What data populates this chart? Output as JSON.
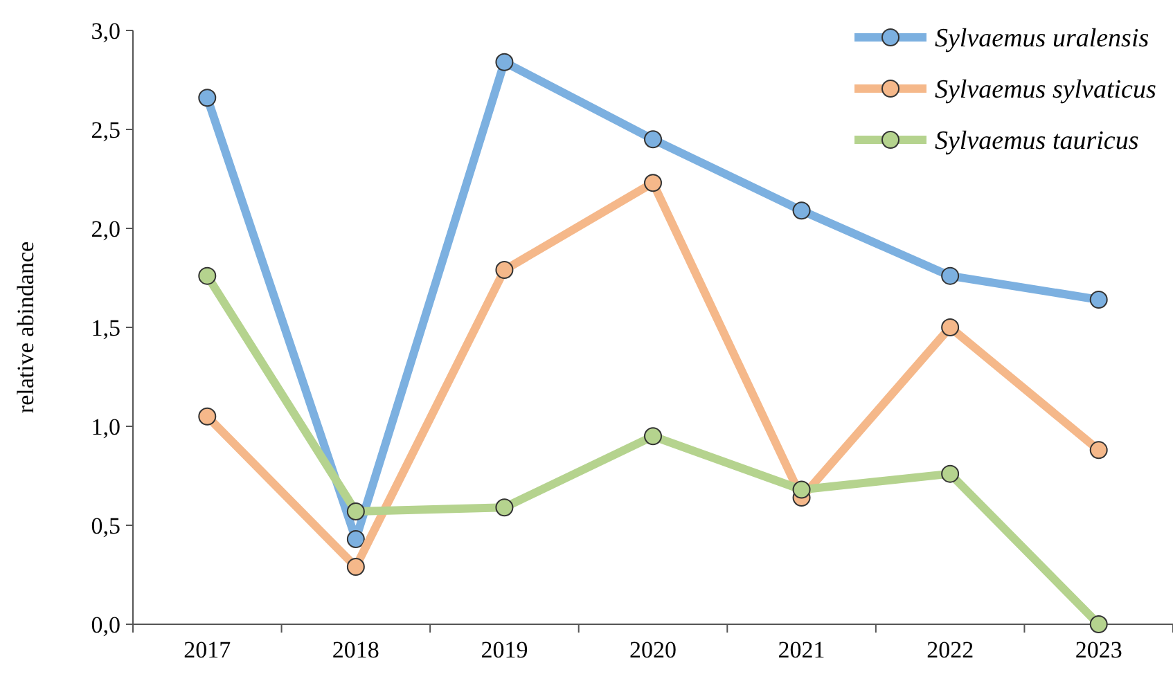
{
  "chart_data": {
    "type": "line",
    "ylabel": "relative abindance",
    "categories": [
      "2017",
      "2018",
      "2019",
      "2020",
      "2021",
      "2022",
      "2023"
    ],
    "series": [
      {
        "name": "Sylvaemus uralensis",
        "color": "#7cb0e0",
        "values": [
          2.66,
          0.43,
          2.84,
          2.45,
          2.09,
          1.76,
          1.64
        ]
      },
      {
        "name": "Sylvaemus sylvaticus",
        "color": "#f5b88a",
        "values": [
          1.05,
          0.29,
          1.79,
          2.23,
          0.64,
          1.5,
          0.88
        ]
      },
      {
        "name": "Sylvaemus tauricus",
        "color": "#b5d38e",
        "values": [
          1.76,
          0.57,
          0.59,
          0.95,
          0.68,
          0.76,
          0
        ]
      }
    ],
    "ylim": [
      0,
      3
    ],
    "yticks": [
      {
        "value": 0,
        "label": "0,0"
      },
      {
        "value": 0.5,
        "label": "0,5"
      },
      {
        "value": 1,
        "label": "1,0"
      },
      {
        "value": 1.5,
        "label": "1,5"
      },
      {
        "value": 2,
        "label": "2,0"
      },
      {
        "value": 2.5,
        "label": "2,5"
      },
      {
        "value": 3,
        "label": "3,0"
      }
    ],
    "grid": false,
    "legend": "top right",
    "marker": "circle",
    "line_style": "solid"
  }
}
